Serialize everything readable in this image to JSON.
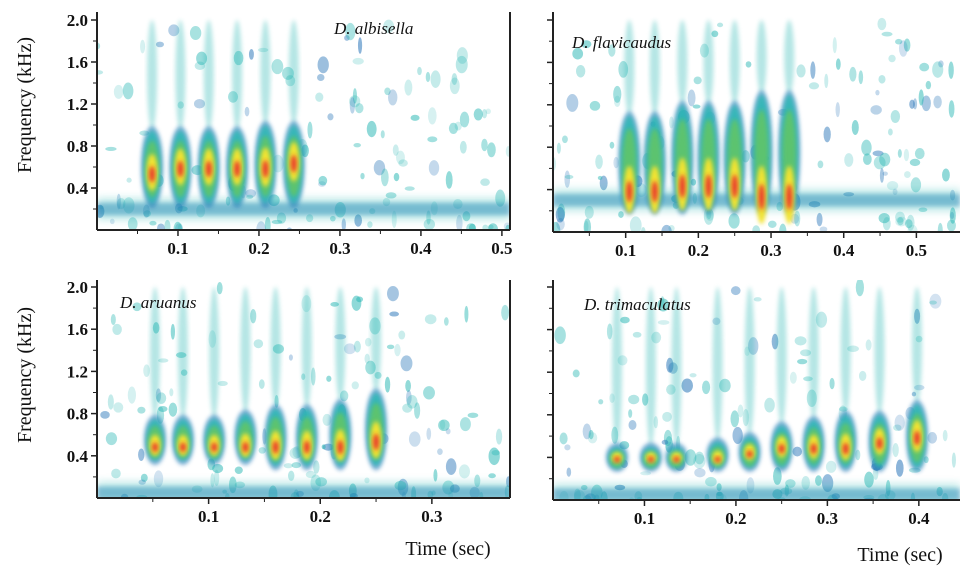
{
  "colors": {
    "pulse_core": "#e8262b",
    "pulse_mid": "#f2e331",
    "pulse_outer": "#5ec46c",
    "noise": "#2ab7b4",
    "noise_dark": "#1f6fb5",
    "axis": "#222222"
  },
  "chart_data": [
    {
      "type": "heatmap",
      "title": "D. albisella",
      "xlabel": "",
      "ylabel": "Frequency (kHz)",
      "xlim": [
        0,
        0.51
      ],
      "ylim": [
        0,
        2.1
      ],
      "x_ticks": [
        "0.1",
        "0.2",
        "0.3",
        "0.4",
        "0.5"
      ],
      "x_tick_values": [
        0.1,
        0.2,
        0.3,
        0.4,
        0.5
      ],
      "y_ticks": [
        "2.0",
        "1.6",
        "1.2",
        "0.8",
        "0.4"
      ],
      "y_tick_values": [
        2.0,
        1.6,
        1.2,
        0.8,
        0.4
      ],
      "pulses": [
        {
          "time": 0.068,
          "freq_low": 0.25,
          "freq_high": 0.95,
          "peak_freq": 0.55
        },
        {
          "time": 0.103,
          "freq_low": 0.25,
          "freq_high": 0.95,
          "peak_freq": 0.6
        },
        {
          "time": 0.138,
          "freq_low": 0.25,
          "freq_high": 0.95,
          "peak_freq": 0.6
        },
        {
          "time": 0.173,
          "freq_low": 0.25,
          "freq_high": 0.95,
          "peak_freq": 0.6
        },
        {
          "time": 0.208,
          "freq_low": 0.25,
          "freq_high": 1.0,
          "peak_freq": 0.6
        },
        {
          "time": 0.243,
          "freq_low": 0.25,
          "freq_high": 1.0,
          "peak_freq": 0.65
        }
      ],
      "noise_band_kHz": 0.2
    },
    {
      "type": "heatmap",
      "title": "D. flavicaudus",
      "xlabel": "Time (sec)",
      "ylabel": "",
      "xlim": [
        0,
        0.56
      ],
      "ylim": [
        0,
        2.1
      ],
      "x_ticks": [
        "0.1",
        "0.2",
        "0.3",
        "0.4",
        "0.5"
      ],
      "x_tick_values": [
        0.1,
        0.2,
        0.3,
        0.4,
        0.5
      ],
      "y_ticks": [
        "",
        "",
        "",
        "",
        ""
      ],
      "y_tick_values": [
        2.0,
        1.6,
        1.2,
        0.8,
        0.4
      ],
      "pulses": [
        {
          "time": 0.105,
          "freq_low": 0.2,
          "freq_high": 1.1,
          "peak_freq": 0.4
        },
        {
          "time": 0.14,
          "freq_low": 0.2,
          "freq_high": 1.1,
          "peak_freq": 0.4
        },
        {
          "time": 0.178,
          "freq_low": 0.2,
          "freq_high": 1.2,
          "peak_freq": 0.45
        },
        {
          "time": 0.214,
          "freq_low": 0.2,
          "freq_high": 1.2,
          "peak_freq": 0.45
        },
        {
          "time": 0.25,
          "freq_low": 0.2,
          "freq_high": 1.2,
          "peak_freq": 0.45
        },
        {
          "time": 0.287,
          "freq_low": 0.2,
          "freq_high": 1.3,
          "peak_freq": 0.35
        },
        {
          "time": 0.325,
          "freq_low": 0.2,
          "freq_high": 1.3,
          "peak_freq": 0.35
        }
      ],
      "noise_band_kHz": 0.3
    },
    {
      "type": "heatmap",
      "title": "D. aruanus",
      "xlabel": "Time (sec)",
      "ylabel": "Frequency (kHz)",
      "xlim": [
        0,
        0.37
      ],
      "ylim": [
        0,
        2.1
      ],
      "x_ticks": [
        "0.1",
        "0.2",
        "0.3"
      ],
      "x_tick_values": [
        0.1,
        0.2,
        0.3
      ],
      "y_ticks": [
        "2.0",
        "1.6",
        "1.2",
        "0.8",
        "0.4"
      ],
      "y_tick_values": [
        2.0,
        1.6,
        1.2,
        0.8,
        0.4
      ],
      "pulses": [
        {
          "time": 0.052,
          "freq_low": 0.35,
          "freq_high": 0.75,
          "peak_freq": 0.5
        },
        {
          "time": 0.077,
          "freq_low": 0.35,
          "freq_high": 0.75,
          "peak_freq": 0.5
        },
        {
          "time": 0.105,
          "freq_low": 0.35,
          "freq_high": 0.75,
          "peak_freq": 0.5
        },
        {
          "time": 0.133,
          "freq_low": 0.35,
          "freq_high": 0.8,
          "peak_freq": 0.5
        },
        {
          "time": 0.16,
          "freq_low": 0.3,
          "freq_high": 0.85,
          "peak_freq": 0.5
        },
        {
          "time": 0.188,
          "freq_low": 0.3,
          "freq_high": 0.85,
          "peak_freq": 0.5
        },
        {
          "time": 0.218,
          "freq_low": 0.3,
          "freq_high": 0.9,
          "peak_freq": 0.5
        },
        {
          "time": 0.25,
          "freq_low": 0.3,
          "freq_high": 1.0,
          "peak_freq": 0.55
        }
      ],
      "noise_band_kHz": 0.05
    },
    {
      "type": "heatmap",
      "title": "D. trimaculatus",
      "xlabel": "",
      "ylabel": "",
      "xlim": [
        0,
        0.445
      ],
      "ylim": [
        0,
        2.1
      ],
      "x_ticks": [
        "0.1",
        "0.2",
        "0.3",
        "0.4"
      ],
      "x_tick_values": [
        0.1,
        0.2,
        0.3,
        0.4
      ],
      "y_ticks": [
        "",
        "",
        "",
        "",
        ""
      ],
      "y_tick_values": [
        2.0,
        1.6,
        1.2,
        0.8,
        0.4
      ],
      "pulses": [
        {
          "time": 0.07,
          "freq_low": 0.3,
          "freq_high": 0.5,
          "peak_freq": 0.4
        },
        {
          "time": 0.107,
          "freq_low": 0.3,
          "freq_high": 0.5,
          "peak_freq": 0.4
        },
        {
          "time": 0.135,
          "freq_low": 0.3,
          "freq_high": 0.5,
          "peak_freq": 0.4
        },
        {
          "time": 0.18,
          "freq_low": 0.3,
          "freq_high": 0.55,
          "peak_freq": 0.4
        },
        {
          "time": 0.215,
          "freq_low": 0.3,
          "freq_high": 0.6,
          "peak_freq": 0.45
        },
        {
          "time": 0.25,
          "freq_low": 0.3,
          "freq_high": 0.7,
          "peak_freq": 0.5
        },
        {
          "time": 0.285,
          "freq_low": 0.3,
          "freq_high": 0.75,
          "peak_freq": 0.5
        },
        {
          "time": 0.32,
          "freq_low": 0.3,
          "freq_high": 0.8,
          "peak_freq": 0.5
        },
        {
          "time": 0.357,
          "freq_low": 0.3,
          "freq_high": 0.8,
          "peak_freq": 0.55
        },
        {
          "time": 0.398,
          "freq_low": 0.3,
          "freq_high": 0.9,
          "peak_freq": 0.6
        }
      ],
      "noise_band_kHz": 0.05
    }
  ]
}
